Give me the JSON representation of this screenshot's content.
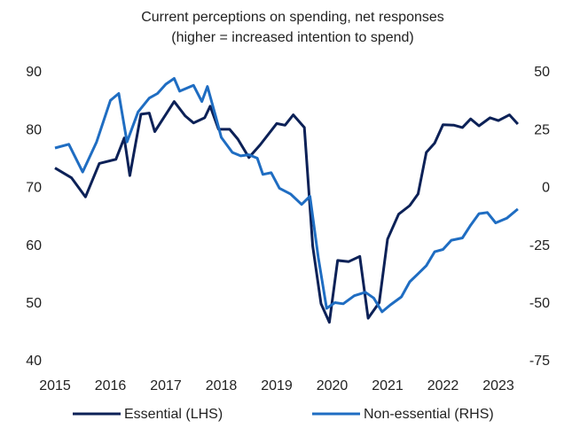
{
  "chart_data": {
    "type": "line",
    "title": "Current perceptions on spending, net responses",
    "subtitle": "(higher = increased intention to spend)",
    "xlim": [
      2015,
      2023.4
    ],
    "xticks": [
      2015,
      2016,
      2017,
      2018,
      2019,
      2020,
      2021,
      2022,
      2023
    ],
    "ylim": [
      40,
      90
    ],
    "yticks": [
      40,
      50,
      60,
      70,
      80,
      90
    ],
    "y2lim": [
      -75,
      50
    ],
    "y2ticks": [
      -75,
      -50,
      -25,
      0,
      25,
      50
    ],
    "grid": false,
    "legend": "bottom",
    "series": [
      {
        "name": "Essential (LHS)",
        "color": "#0c2157",
        "axis": "y",
        "x": [
          2015.0,
          2015.3,
          2015.55,
          2015.8,
          2016.1,
          2016.25,
          2016.35,
          2016.55,
          2016.7,
          2016.8,
          2017.15,
          2017.35,
          2017.5,
          2017.7,
          2017.8,
          2017.95,
          2018.15,
          2018.3,
          2018.5,
          2018.7,
          2019.0,
          2019.15,
          2019.3,
          2019.5,
          2019.65,
          2019.8,
          2019.95,
          2020.1,
          2020.3,
          2020.5,
          2020.65,
          2020.85,
          2021.0,
          2021.2,
          2021.4,
          2021.55,
          2021.7,
          2021.85,
          2022.0,
          2022.2,
          2022.35,
          2022.5,
          2022.65,
          2022.85,
          2023.0,
          2023.2,
          2023.35
        ],
        "values": [
          73.5,
          71.8,
          68.5,
          74.3,
          75,
          78.7,
          72.2,
          82.8,
          83,
          79.8,
          85,
          82.5,
          81.3,
          82.2,
          84.2,
          80.2,
          80.2,
          78.5,
          75.3,
          77.5,
          81.2,
          80.9,
          82.7,
          80.5,
          60,
          50,
          46.8,
          57.5,
          57.3,
          58.2,
          47.5,
          50.2,
          61.2,
          65.5,
          67,
          69,
          76.2,
          77.8,
          81,
          80.9,
          80.5,
          82,
          80.8,
          82.2,
          81.7,
          82.7,
          81.1
        ]
      },
      {
        "name": "Non-essential (RHS)",
        "color": "#1f6dc2",
        "axis": "y2",
        "x": [
          2015.0,
          2015.25,
          2015.5,
          2015.75,
          2016.0,
          2016.15,
          2016.3,
          2016.5,
          2016.7,
          2016.85,
          2017.0,
          2017.15,
          2017.25,
          2017.5,
          2017.65,
          2017.75,
          2017.9,
          2018.0,
          2018.2,
          2018.35,
          2018.5,
          2018.65,
          2018.75,
          2018.9,
          2019.05,
          2019.25,
          2019.45,
          2019.6,
          2019.75,
          2019.9,
          2020.05,
          2020.2,
          2020.4,
          2020.6,
          2020.75,
          2020.9,
          2021.05,
          2021.25,
          2021.4,
          2021.55,
          2021.7,
          2021.85,
          2022.0,
          2022.15,
          2022.35,
          2022.5,
          2022.65,
          2022.8,
          2022.95,
          2023.15,
          2023.35
        ],
        "values": [
          17.4,
          19,
          7,
          20,
          38,
          41,
          20,
          33,
          39,
          41,
          45,
          47.5,
          42,
          44.5,
          37.5,
          44,
          31,
          22,
          15.5,
          14,
          14.5,
          13,
          6,
          6.7,
          0,
          -2.5,
          -7,
          -3.5,
          -30,
          -52,
          -49.5,
          -50,
          -46.5,
          -45,
          -47.5,
          -53.5,
          -50.5,
          -47,
          -40.5,
          -37,
          -33.5,
          -27.5,
          -26.5,
          -22.5,
          -21.5,
          -16,
          -11,
          -10.5,
          -15,
          -13,
          -9
        ]
      }
    ]
  }
}
